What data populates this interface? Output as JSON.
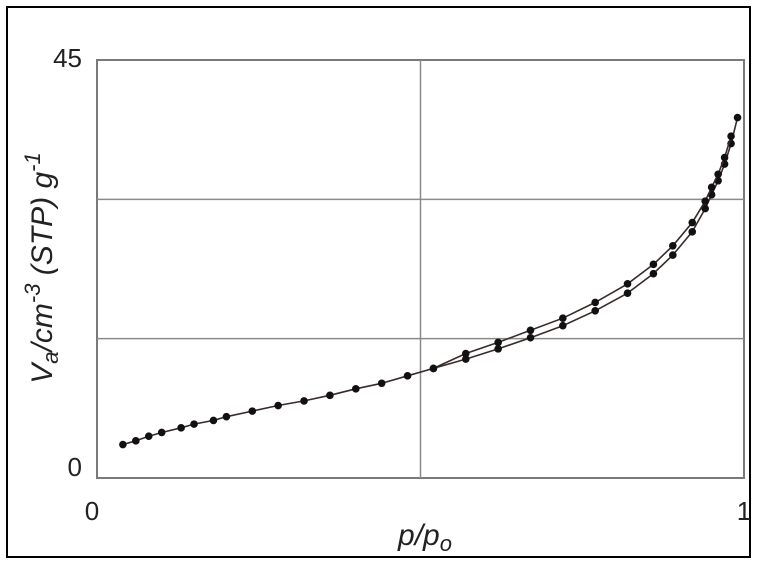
{
  "chart_data": {
    "type": "line",
    "xlabel": {
      "main": "p/p",
      "sub": "o"
    },
    "ylabel": {
      "v": "V",
      "v_sub": "a",
      "unit_pre": "/cm",
      "unit_exp": "-3",
      "unit_mid": " (STP) g",
      "unit_exp2": "-1"
    },
    "xlim": [
      0,
      1
    ],
    "ylim": [
      0,
      45
    ],
    "x_tick_labels": [
      "0",
      "1"
    ],
    "y_tick_labels": [
      "0",
      "45"
    ],
    "grid": true,
    "line_color": "#3a2a2a",
    "marker_color": "#111111",
    "series": [
      {
        "x": [
          0.04,
          0.06,
          0.08,
          0.1,
          0.13,
          0.15,
          0.18,
          0.2,
          0.24,
          0.28,
          0.32,
          0.36,
          0.4,
          0.44,
          0.48,
          0.52,
          0.57,
          0.62,
          0.67,
          0.72,
          0.77,
          0.82,
          0.86,
          0.89,
          0.92,
          0.94,
          0.95,
          0.96,
          0.97,
          0.98,
          0.99
        ],
        "y": [
          3.6,
          4.0,
          4.5,
          4.9,
          5.4,
          5.8,
          6.2,
          6.6,
          7.2,
          7.8,
          8.3,
          8.9,
          9.6,
          10.2,
          11.0,
          11.8,
          12.8,
          13.9,
          15.1,
          16.4,
          18.0,
          19.9,
          22.0,
          24.0,
          26.5,
          29.0,
          30.5,
          32.0,
          33.8,
          36.0,
          38.8
        ]
      },
      {
        "x": [
          0.52,
          0.57,
          0.62,
          0.67,
          0.72,
          0.77,
          0.82,
          0.86,
          0.89,
          0.92,
          0.94,
          0.95,
          0.96,
          0.97,
          0.98
        ],
        "y": [
          11.8,
          13.4,
          14.6,
          15.9,
          17.2,
          18.9,
          20.9,
          23.0,
          25.0,
          27.5,
          29.8,
          31.3,
          32.7,
          34.5,
          36.8
        ]
      }
    ]
  }
}
